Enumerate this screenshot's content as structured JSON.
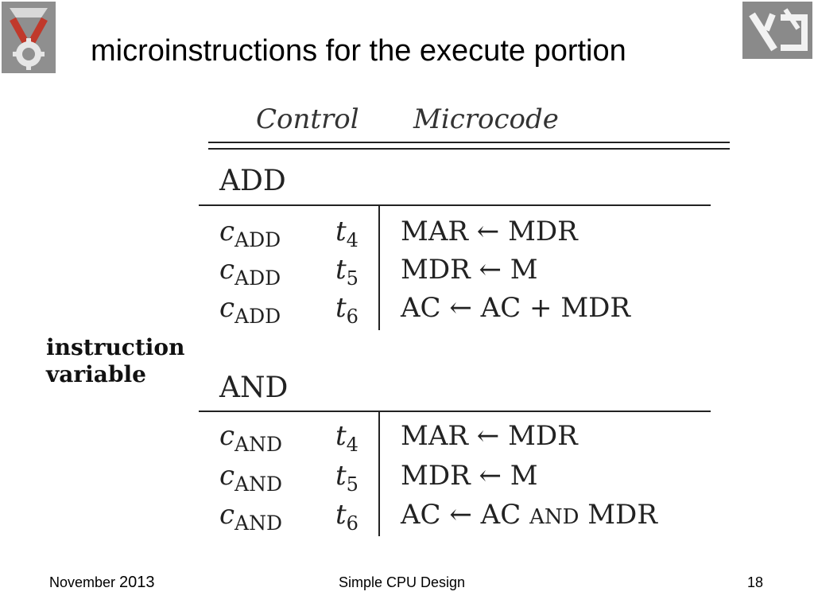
{
  "slide": {
    "title": "microinstructions for the execute portion"
  },
  "table": {
    "columns": [
      "Control",
      "Microcode"
    ],
    "sections": [
      {
        "name": "ADD",
        "rows": [
          {
            "control": "c",
            "control_sub": "ADD",
            "time": "t",
            "time_sub": "4",
            "microcode": "MAR ← MDR"
          },
          {
            "control": "c",
            "control_sub": "ADD",
            "time": "t",
            "time_sub": "5",
            "microcode": "MDR ← M"
          },
          {
            "control": "c",
            "control_sub": "ADD",
            "time": "t",
            "time_sub": "6",
            "microcode": "AC ← AC + MDR"
          }
        ]
      },
      {
        "name": "AND",
        "rows": [
          {
            "control": "c",
            "control_sub": "AND",
            "time": "t",
            "time_sub": "4",
            "microcode": "MAR ← MDR"
          },
          {
            "control": "c",
            "control_sub": "AND",
            "time": "t",
            "time_sub": "5",
            "microcode": "MDR ← M"
          },
          {
            "control": "c",
            "control_sub": "AND",
            "time": "t",
            "time_sub": "6",
            "microcode_pre": "AC ← AC ",
            "microcode_op": "AND",
            "microcode_post": " MDR"
          }
        ]
      }
    ]
  },
  "side_label": {
    "line1": "instruction",
    "line2": "variable"
  },
  "footer": {
    "month": "November ",
    "year": "2013",
    "center": "Simple CPU Design",
    "page": "18"
  },
  "logos": {
    "left": "university-emblem",
    "right": "department-logo"
  }
}
